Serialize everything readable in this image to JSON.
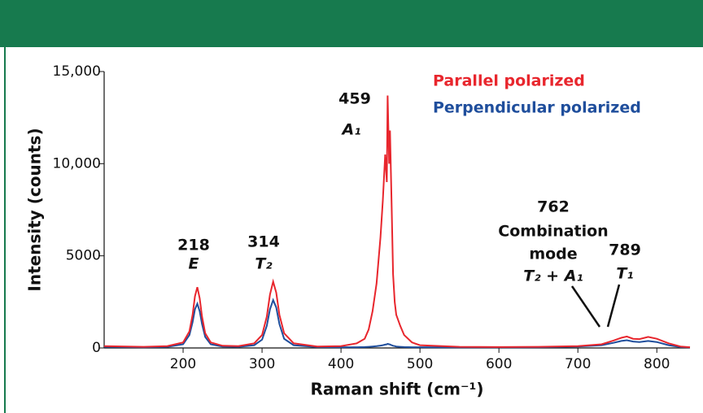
{
  "chart_data": {
    "type": "line",
    "x_label": "Raman shift (cm⁻¹)",
    "y_label": "Intensity (counts)",
    "x": [
      100,
      150,
      180,
      200,
      208,
      212,
      215,
      218,
      221,
      224,
      228,
      235,
      250,
      270,
      290,
      300,
      306,
      310,
      314,
      318,
      322,
      328,
      340,
      370,
      400,
      420,
      430,
      435,
      440,
      445,
      450,
      453,
      456,
      458,
      459,
      461,
      462,
      464,
      466,
      468,
      470,
      475,
      480,
      490,
      500,
      550,
      600,
      650,
      700,
      730,
      745,
      755,
      762,
      770,
      778,
      789,
      800,
      815,
      830,
      842
    ],
    "series": [
      {
        "name": "Parallel polarized",
        "color": "#e8262d",
        "values": [
          100,
          60,
          100,
          300,
          900,
          1800,
          2800,
          3300,
          2700,
          1700,
          800,
          300,
          120,
          100,
          250,
          700,
          1700,
          2900,
          3600,
          3000,
          1800,
          800,
          250,
          80,
          100,
          250,
          500,
          1000,
          2000,
          3500,
          6000,
          8000,
          10500,
          9000,
          13700,
          10000,
          11800,
          8000,
          4000,
          2500,
          1800,
          1200,
          700,
          300,
          150,
          60,
          50,
          60,
          100,
          200,
          400,
          550,
          620,
          500,
          480,
          600,
          500,
          250,
          80,
          40
        ]
      },
      {
        "name": "Perpendicular polarized",
        "color": "#1f4e9c",
        "values": [
          60,
          40,
          60,
          200,
          700,
          1400,
          2100,
          2400,
          2000,
          1300,
          600,
          200,
          80,
          60,
          150,
          450,
          1200,
          2100,
          2600,
          2200,
          1300,
          500,
          150,
          50,
          40,
          40,
          50,
          60,
          80,
          100,
          130,
          150,
          180,
          200,
          220,
          200,
          190,
          150,
          120,
          100,
          80,
          60,
          50,
          40,
          40,
          30,
          30,
          40,
          80,
          150,
          280,
          380,
          420,
          350,
          320,
          380,
          320,
          150,
          50,
          30
        ]
      }
    ],
    "xlim": [
      100,
      842
    ],
    "ylim": [
      0,
      15000
    ],
    "xticks": [
      200,
      300,
      400,
      500,
      600,
      700,
      800
    ],
    "yticks": [
      0,
      5000,
      {
        "value": 10000,
        "label": "10,000"
      },
      {
        "value": 15000,
        "label": "15,000"
      }
    ],
    "annotations": [
      "459",
      "A₁",
      "218",
      "E",
      "314",
      "T₂",
      "762",
      "Combination",
      "mode",
      "T₂ + A₁",
      "789",
      "T₁"
    ]
  }
}
